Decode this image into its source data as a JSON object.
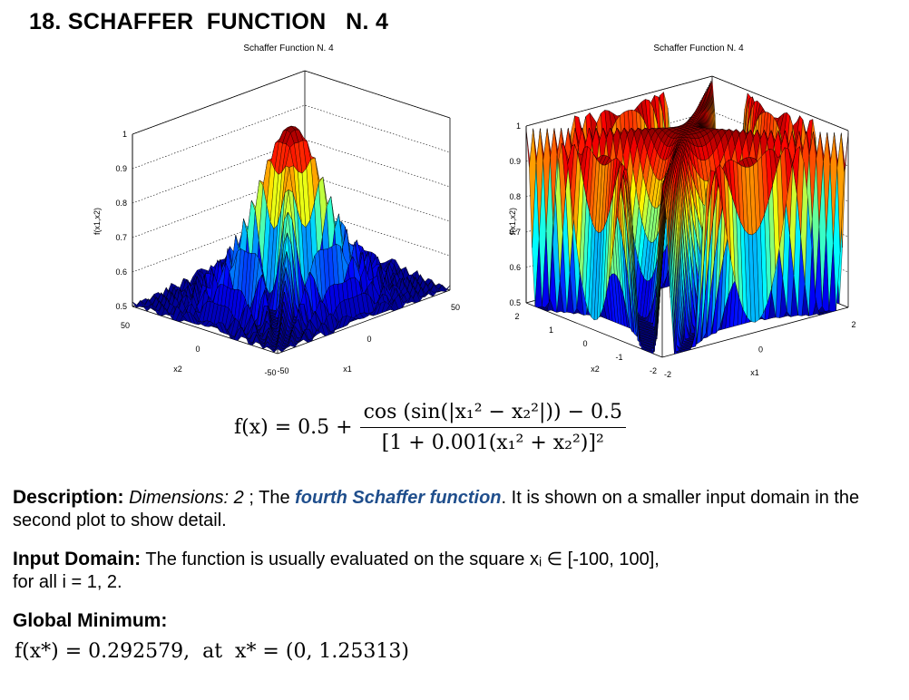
{
  "page": {
    "title": "18. SCHAFFER  FUNCTION   N. 4"
  },
  "chart_data": [
    {
      "type": "surface",
      "title": "Schaffer Function N. 4",
      "xlabel": "x1",
      "ylabel": "x2",
      "zlabel": "f(x1,x2)",
      "x_ticks": [
        "-50",
        "0",
        "50"
      ],
      "y_ticks": [
        "-50",
        "0",
        "50"
      ],
      "z_ticks": [
        "0.5",
        "0.6",
        "0.7",
        "0.8",
        "0.9",
        "1"
      ],
      "xlim": [
        -50,
        50
      ],
      "ylim": [
        -50,
        50
      ],
      "zlim": [
        0.5,
        1
      ],
      "colormap": "jet",
      "grid": true
    },
    {
      "type": "surface",
      "title": "Schaffer Function N. 4",
      "xlabel": "x1",
      "ylabel": "x2",
      "zlabel": "f(x1,x2)",
      "x_ticks": [
        "-2",
        "0",
        "2"
      ],
      "y_ticks": [
        "-2",
        "-1",
        "0",
        "1",
        "2"
      ],
      "z_ticks": [
        "0.5",
        "0.6",
        "0.7",
        "0.8",
        "0.9",
        "1"
      ],
      "xlim": [
        -2,
        2
      ],
      "ylim": [
        -2,
        2
      ],
      "zlim": [
        0.5,
        1
      ],
      "colormap": "jet",
      "grid": true
    }
  ],
  "formula": {
    "lhs": "f(x) = 0.5 +",
    "numerator": "cos (sin(|x₁² − x₂²|)) − 0.5",
    "denominator": "[1 + 0.001(x₁² + x₂²)]²"
  },
  "description": {
    "label": "Description:",
    "dims": "Dimensions: 2",
    "sep": " ; The ",
    "link": "fourth Schaffer function",
    "rest": ". It is shown on a smaller input domain in the second plot to show detail."
  },
  "input_domain": {
    "label": "Input Domain:",
    "text": "  The function is usually evaluated on the square xᵢ ∈ [-100, 100],",
    "text2": "for all i = 1, 2."
  },
  "global_minimum": {
    "label": "Global Minimum:",
    "value": "f(x*) = 0.292579,  at  x* = (0, 1.25313)"
  },
  "colors": {
    "link": "#1f4e8c"
  }
}
